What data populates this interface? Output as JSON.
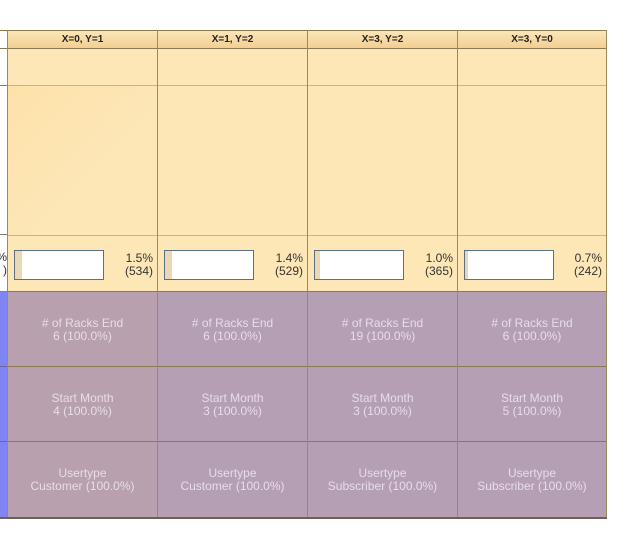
{
  "columns": [
    {
      "header": "X=0, Y=1",
      "percent": "1.5%",
      "count": "(534)",
      "bar_fraction": 0.015,
      "racks_label": "# of Racks End",
      "racks_value": "6 (100.0%)",
      "month_label": "Start Month",
      "month_value": "4 (100.0%)",
      "usertype_label": "Usertype",
      "usertype_value": "Customer (100.0%)",
      "cell_color": "#b8a0ae"
    },
    {
      "header": "X=1, Y=2",
      "percent": "1.4%",
      "count": "(529)",
      "bar_fraction": 0.014,
      "racks_label": "# of Racks End",
      "racks_value": "6 (100.0%)",
      "month_label": "Start Month",
      "month_value": "3 (100.0%)",
      "usertype_label": "Usertype",
      "usertype_value": "Customer (100.0%)",
      "cell_color": "#b49fb4"
    },
    {
      "header": "X=3, Y=2",
      "percent": "1.0%",
      "count": "(365)",
      "bar_fraction": 0.01,
      "racks_label": "# of Racks End",
      "racks_value": "19 (100.0%)",
      "month_label": "Start Month",
      "month_value": "3 (100.0%)",
      "usertype_label": "Usertype",
      "usertype_value": "Subscriber (100.0%)",
      "cell_color": "#b49fb4"
    },
    {
      "header": "X=3, Y=0",
      "percent": "0.7%",
      "count": "(242)",
      "bar_fraction": 0.007,
      "racks_label": "# of Racks End",
      "racks_value": "6 (100.0%)",
      "month_label": "Start Month",
      "month_value": "5 (100.0%)",
      "usertype_label": "Usertype",
      "usertype_value": "Subscriber (100.0%)",
      "cell_color": "#b49fb4"
    }
  ],
  "left_fragment": {
    "percent_tail": "%",
    "count_tail": ")"
  },
  "colors": {
    "header_bg": "#f2cf92",
    "cell_bg": "#fde7b7",
    "attribute_bg": "#b49fb4",
    "left_strip_blue": "#7f86f2",
    "bar_border": "#5a6f88"
  }
}
